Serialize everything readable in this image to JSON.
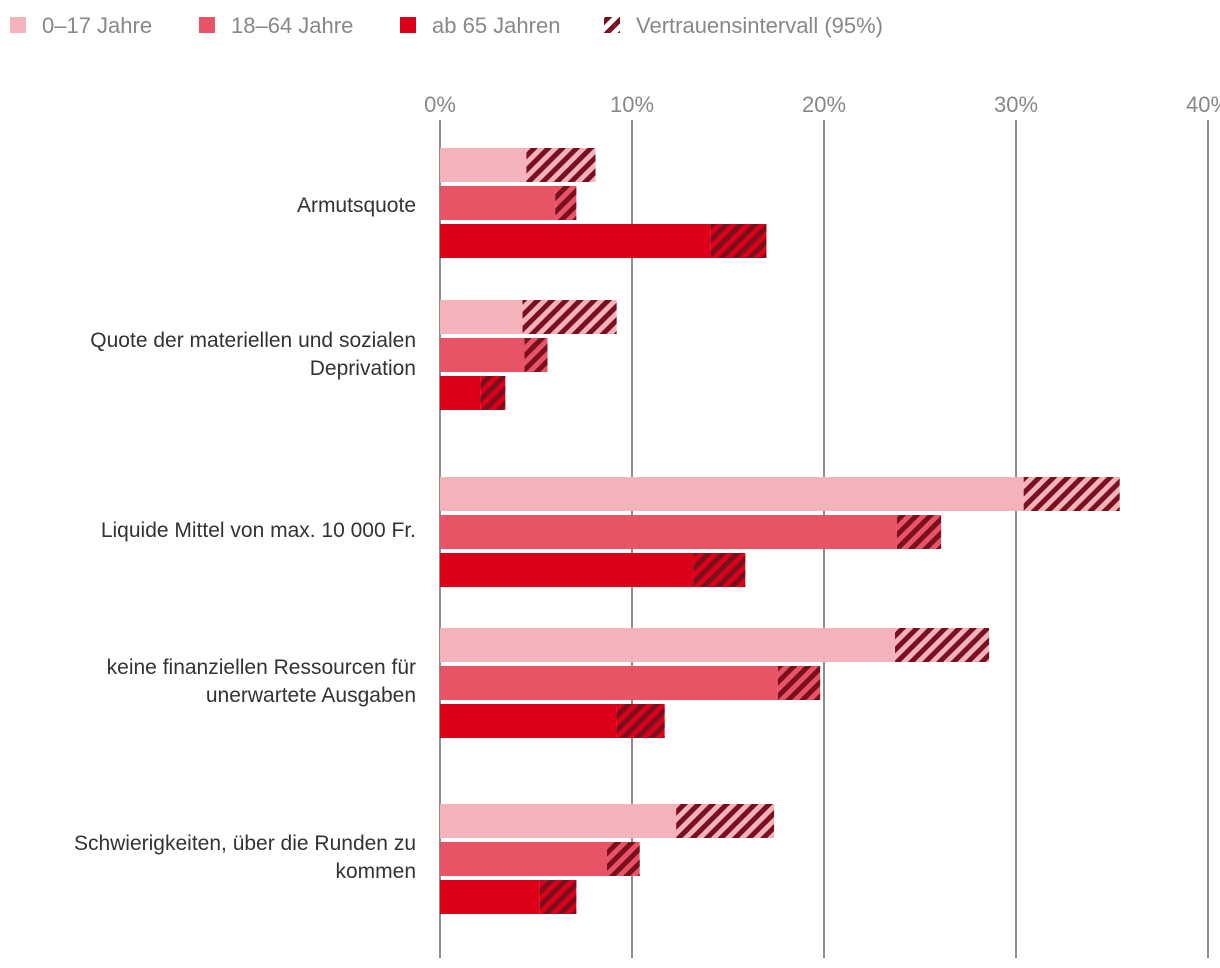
{
  "chart_data": {
    "type": "bar",
    "orientation": "horizontal",
    "categories": [
      [
        "Armutsquote"
      ],
      [
        "Quote der materiellen und sozialen",
        "Deprivation"
      ],
      [
        "Liquide Mittel von max. 10 000 Fr."
      ],
      [
        "keine finanziellen Ressourcen für",
        "unerwartete Ausgaben"
      ],
      [
        "Schwierigkeiten, über die Runden zu",
        "kommen"
      ]
    ],
    "series": [
      {
        "name": "0–17 Jahre",
        "color": "#f4b3bb",
        "values": [
          6.2,
          6.7,
          33.2,
          26.2,
          14.9
        ],
        "ci": [
          [
            4.5,
            8.1
          ],
          [
            4.3,
            9.2
          ],
          [
            30.4,
            35.4
          ],
          [
            23.7,
            28.6
          ],
          [
            12.3,
            17.4
          ]
        ]
      },
      {
        "name": "18–64 Jahre",
        "color": "#e85465",
        "values": [
          6.6,
          5.1,
          25.0,
          18.8,
          9.6
        ],
        "ci": [
          [
            6.0,
            7.1
          ],
          [
            4.4,
            5.6
          ],
          [
            23.8,
            26.1
          ],
          [
            17.6,
            19.8
          ],
          [
            8.7,
            10.4
          ]
        ]
      },
      {
        "name": "ab 65 Jahren",
        "color": "#dc0019",
        "values": [
          15.6,
          2.9,
          14.7,
          10.5,
          6.2
        ],
        "ci": [
          [
            14.1,
            17.0
          ],
          [
            2.1,
            3.4
          ],
          [
            13.2,
            15.9
          ],
          [
            9.2,
            11.7
          ],
          [
            5.2,
            7.1
          ]
        ]
      }
    ],
    "ci_legend": "Vertrauensintervall (95%)",
    "ci_color": "#7a0f1e",
    "xlim": [
      0,
      40
    ],
    "xticks": [
      "0%",
      "10%",
      "20%",
      "30%",
      "40%"
    ],
    "xtick_values": [
      0,
      10,
      20,
      30,
      40
    ],
    "grid": true,
    "axis_position": "top",
    "legend_position": "top-left"
  }
}
